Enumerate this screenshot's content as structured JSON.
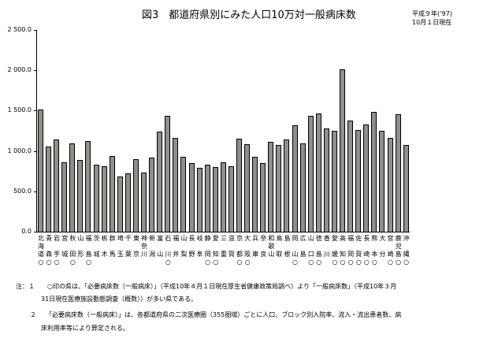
{
  "header": {
    "title": "図3　都道府県別にみた人口10万対一般病床数",
    "date_line1": "平成９年(’97)",
    "date_line2": "10月１日現在"
  },
  "chart_data": {
    "type": "bar",
    "title": "都道府県別にみた人口10万対一般病床数",
    "xlabel": "",
    "ylabel": "",
    "ylim": [
      0,
      2500
    ],
    "yticks": [
      "0.0",
      "500.0",
      "1 000.0",
      "1 500.0",
      "2 000.0",
      "2 500.0"
    ],
    "grid": false,
    "categories": [
      "北海道",
      "青森",
      "岩手",
      "宮城",
      "秋田",
      "山形",
      "福島",
      "茨城",
      "栃木",
      "群馬",
      "埼玉",
      "千葉",
      "東京",
      "神奈川",
      "新潟",
      "富山",
      "石川",
      "福井",
      "山梨",
      "長野",
      "岐阜",
      "静岡",
      "愛知",
      "三重",
      "滋賀",
      "京都",
      "大阪",
      "兵庫",
      "奈良",
      "和歌山",
      "鳥取",
      "島根",
      "岡山",
      "広島",
      "山口",
      "徳島",
      "香川",
      "愛媛",
      "高知",
      "福岡",
      "佐賀",
      "長崎",
      "熊本",
      "大分",
      "宮崎",
      "鹿児島",
      "沖縄"
    ],
    "labels_top": [
      "北",
      "青",
      "岩",
      "宮",
      "秋",
      "山",
      "福",
      "茨",
      "栃",
      "群",
      "埼",
      "千",
      "東",
      "神",
      "新",
      "富",
      "石",
      "福",
      "山",
      "長",
      "岐",
      "静",
      "愛",
      "三",
      "滋",
      "京",
      "大",
      "兵",
      "奈",
      "和",
      "鳥",
      "島",
      "岡",
      "広",
      "山",
      "徳",
      "香",
      "愛",
      "高",
      "福",
      "佐",
      "長",
      "熊",
      "大",
      "宮",
      "鹿",
      "沖"
    ],
    "labels_mid": [
      "海",
      "",
      "",
      "",
      "",
      "",
      "",
      "",
      "",
      "",
      "",
      "",
      "",
      "奈",
      "",
      "",
      "",
      "",
      "",
      "",
      "",
      "",
      "",
      "",
      "",
      "",
      "",
      "",
      "",
      "歌",
      "",
      "",
      "",
      "",
      "",
      "",
      "",
      "",
      "",
      "",
      "",
      "",
      "",
      "",
      "",
      "児",
      ""
    ],
    "labels_bot": [
      "道",
      "森",
      "手",
      "城",
      "田",
      "形",
      "島",
      "城",
      "木",
      "馬",
      "玉",
      "葉",
      "京",
      "川",
      "潟",
      "山",
      "川",
      "井",
      "梨",
      "野",
      "阜",
      "岡",
      "知",
      "重",
      "賀",
      "都",
      "阪",
      "庫",
      "良",
      "山",
      "取",
      "根",
      "山",
      "島",
      "口",
      "島",
      "川",
      "媛",
      "知",
      "岡",
      "賀",
      "崎",
      "本",
      "分",
      "崎",
      "島",
      "縄"
    ],
    "marked": [
      "○",
      "○",
      "○",
      "",
      "○",
      "",
      "○",
      "",
      "",
      "",
      "",
      "",
      "",
      "",
      "",
      "",
      "○",
      "",
      "",
      "",
      "",
      "○",
      "○",
      "",
      "",
      "○",
      "○",
      "",
      "",
      "",
      "",
      "",
      "○",
      "",
      "○",
      "○",
      "",
      "○",
      "○",
      "○",
      "○",
      "○",
      "○",
      "",
      "○",
      "○",
      "○"
    ],
    "values": [
      1511,
      1052,
      1140,
      856,
      1091,
      885,
      1120,
      827,
      807,
      934,
      680,
      719,
      895,
      729,
      915,
      1237,
      1432,
      1159,
      925,
      847,
      788,
      827,
      798,
      856,
      807,
      1149,
      1081,
      925,
      847,
      1110,
      1071,
      1140,
      1315,
      1091,
      1432,
      1462,
      1276,
      1247,
      2009,
      1374,
      1257,
      1325,
      1481,
      1247,
      1159,
      1452,
      1071
    ],
    "bar_color": "#8e918b"
  },
  "notes": {
    "n1_line1": "注：１　　○印の県は、「必要病床数（一般病床）」（平成10年４月１日現在厚生省健康政策局調べ）より「一般病床数」（平成10年３月",
    "n1_line2": "31日現在医療施設動態調査（概数））が多い県である。",
    "n2_line1": "２　　「必要病床数（一般病床）」は、各都道府県の二次医療圏（355圏域）ごとに人口、ブロック別入院率、流入・流出患者数、病",
    "n2_line2": "床利用率等により算定される。"
  }
}
